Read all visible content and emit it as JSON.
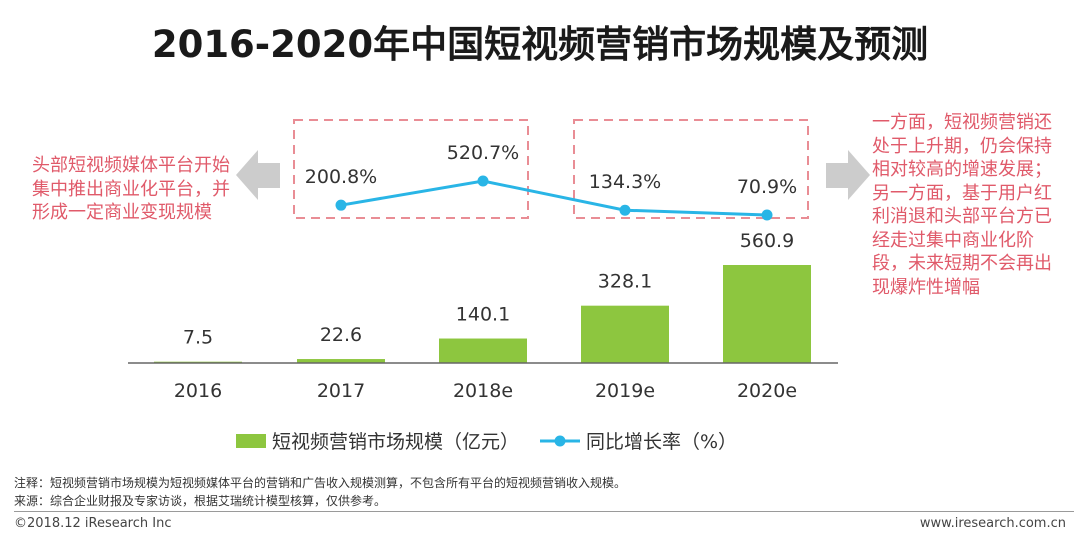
{
  "title": "2016-2020年中国短视频营销市场规模及预测",
  "left_note": "头部短视频媒体平台开始集中推出商业化平台，并形成一定商业变现规模",
  "right_note": "一方面，短视频营销还处于上升期，仍会保持相对较高的增速发展；另一方面，基于用户红利消退和头部平台方已经走过集中商业化阶段，未来短期不会再出现爆炸性增幅",
  "chart_data": {
    "type": "bar+line",
    "categories": [
      "2016",
      "2017",
      "2018e",
      "2019e",
      "2020e"
    ],
    "series": [
      {
        "name": "短视频营销市场规模（亿元）",
        "type": "bar",
        "values": [
          7.5,
          22.6,
          140.1,
          328.1,
          560.9
        ],
        "labels": [
          "7.5",
          "22.6",
          "140.1",
          "328.1",
          "560.9"
        ],
        "color": "#8dc63f"
      },
      {
        "name": "同比增长率（%）",
        "type": "line",
        "values": [
          null,
          200.8,
          520.7,
          134.3,
          70.9
        ],
        "labels": [
          "",
          "200.8%",
          "520.7%",
          "134.3%",
          "70.9%"
        ],
        "color": "#29b5e6"
      }
    ],
    "bar_ylim": [
      0,
      600
    ],
    "line_ylim": [
      0,
      1400
    ],
    "legend_position": "bottom"
  },
  "colors": {
    "accent_red": "#e05a6a",
    "dashed_box": "#e98d95",
    "arrow_gray": "#cccccc",
    "axis": "#666666"
  },
  "footnotes": {
    "note1": "注释：短视频营销市场规模为短视频媒体平台的营销和广告收入规模测算，不包含所有平台的短视频营销收入规模。",
    "note2": "来源：综合企业财报及专家访谈，根据艾瑞统计模型核算，仅供参考。",
    "copyright": "©2018.12 iResearch Inc",
    "website": "www.iresearch.com.cn"
  }
}
